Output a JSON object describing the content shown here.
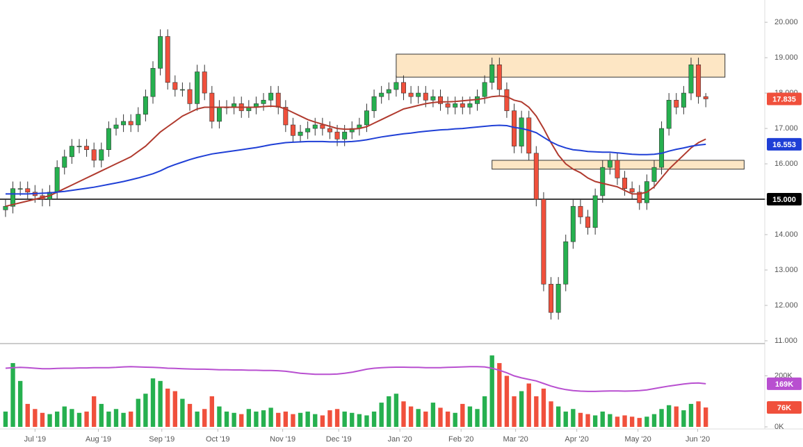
{
  "chart_data": {
    "type": "candlestick",
    "up_color": "#26b04f",
    "down_color": "#f0503c",
    "xlim": [
      -0.75,
      103
    ],
    "xticks": [
      {
        "value": 4.0,
        "label": "Jul '19"
      },
      {
        "value": 12.6,
        "label": "Aug '19"
      },
      {
        "value": 21.2,
        "label": "Sep '19"
      },
      {
        "value": 28.8,
        "label": "Oct '19"
      },
      {
        "value": 37.6,
        "label": "Nov '19"
      },
      {
        "value": 45.2,
        "label": "Dec '19"
      },
      {
        "value": 53.5,
        "label": "Jan '20"
      },
      {
        "value": 61.8,
        "label": "Feb '20"
      },
      {
        "value": 69.2,
        "label": "Mar '20"
      },
      {
        "value": 77.5,
        "label": "Apr '20"
      },
      {
        "value": 85.8,
        "label": "May '20"
      },
      {
        "value": 93.9,
        "label": "Jun '20"
      }
    ],
    "ylim": [
      10.96,
      20.63
    ],
    "yticks": [
      {
        "value": 11,
        "label": "11.000"
      },
      {
        "value": 12,
        "label": "12.000"
      },
      {
        "value": 13,
        "label": "13.000"
      },
      {
        "value": 14,
        "label": "14.000"
      },
      {
        "value": 15,
        "label": "15.000"
      },
      {
        "value": 16,
        "label": "16.000"
      },
      {
        "value": 17,
        "label": "17.000"
      },
      {
        "value": 18,
        "label": "18.000"
      },
      {
        "value": 19,
        "label": "19.000"
      },
      {
        "value": 20,
        "label": "20.000"
      }
    ],
    "open": [
      14.7,
      14.8,
      15.3,
      15.3,
      15.2,
      15.1,
      15.0,
      15.2,
      15.9,
      16.2,
      16.5,
      16.5,
      16.4,
      16.1,
      16.4,
      17.0,
      17.1,
      17.2,
      17.1,
      17.4,
      17.9,
      18.7,
      19.6,
      18.3,
      18.1,
      18.1,
      17.7,
      18.6,
      18.0,
      17.2,
      17.6,
      17.6,
      17.7,
      17.5,
      17.6,
      17.7,
      17.8,
      18.0,
      17.6,
      17.1,
      16.8,
      16.9,
      17.0,
      17.1,
      17.0,
      16.9,
      16.7,
      16.9,
      17.0,
      17.1,
      17.5,
      17.9,
      18.0,
      18.1,
      18.3,
      18.0,
      17.9,
      18.0,
      17.8,
      17.9,
      17.7,
      17.6,
      17.7,
      17.6,
      17.7,
      17.9,
      18.3,
      18.8,
      18.1,
      17.5,
      16.5,
      17.3,
      16.3,
      15.0,
      12.6,
      11.8,
      12.6,
      13.8,
      14.8,
      14.5,
      14.2,
      15.1,
      15.9,
      16.1,
      15.6,
      15.3,
      15.2,
      14.9,
      15.5,
      15.9,
      17.0,
      17.8,
      17.6,
      18.0,
      18.8,
      17.9
    ],
    "high": [
      15.0,
      15.5,
      15.5,
      15.5,
      15.4,
      15.3,
      15.4,
      16.1,
      16.4,
      16.7,
      16.7,
      16.7,
      16.6,
      16.6,
      17.2,
      17.3,
      17.4,
      17.4,
      17.6,
      18.1,
      18.9,
      19.8,
      19.8,
      18.5,
      18.3,
      18.3,
      18.8,
      18.8,
      18.2,
      17.8,
      17.8,
      17.9,
      17.9,
      17.8,
      17.9,
      18.0,
      18.2,
      18.2,
      17.8,
      17.3,
      17.1,
      17.2,
      17.3,
      17.3,
      17.2,
      17.1,
      17.1,
      17.2,
      17.3,
      17.7,
      18.1,
      18.2,
      18.3,
      18.5,
      18.5,
      18.2,
      18.2,
      18.2,
      18.1,
      18.1,
      17.9,
      17.9,
      17.9,
      17.9,
      18.1,
      18.5,
      19.0,
      19.0,
      18.3,
      17.7,
      17.5,
      17.5,
      16.5,
      15.2,
      12.8,
      12.8,
      14.0,
      15.0,
      15.0,
      14.7,
      15.3,
      16.1,
      16.3,
      16.3,
      15.8,
      15.5,
      15.4,
      15.7,
      16.1,
      17.2,
      18.0,
      18.0,
      18.2,
      19.0,
      19.0,
      18.0
    ],
    "low": [
      14.5,
      14.6,
      15.1,
      15.0,
      14.9,
      14.8,
      14.8,
      15.0,
      15.7,
      16.0,
      16.3,
      16.2,
      15.9,
      15.9,
      16.2,
      16.8,
      16.9,
      16.9,
      16.9,
      17.2,
      17.7,
      18.5,
      18.1,
      17.9,
      17.9,
      17.5,
      17.5,
      17.8,
      17.0,
      17.0,
      17.4,
      17.4,
      17.3,
      17.3,
      17.4,
      17.5,
      17.6,
      17.4,
      16.9,
      16.6,
      16.6,
      16.7,
      16.8,
      16.8,
      16.7,
      16.5,
      16.5,
      16.7,
      16.8,
      16.9,
      17.3,
      17.7,
      17.8,
      17.9,
      17.8,
      17.7,
      17.7,
      17.6,
      17.6,
      17.5,
      17.4,
      17.4,
      17.4,
      17.4,
      17.5,
      17.7,
      18.1,
      17.9,
      17.3,
      16.3,
      16.3,
      16.1,
      14.8,
      12.4,
      11.6,
      11.6,
      12.4,
      13.6,
      14.3,
      14.0,
      14.0,
      14.9,
      15.7,
      15.4,
      15.1,
      15.0,
      14.7,
      14.7,
      15.3,
      15.7,
      16.8,
      17.4,
      17.4,
      17.8,
      17.7,
      17.6
    ],
    "close": [
      14.8,
      15.3,
      15.3,
      15.2,
      15.1,
      15.0,
      15.2,
      15.9,
      16.2,
      16.5,
      16.5,
      16.4,
      16.1,
      16.4,
      17.0,
      17.1,
      17.2,
      17.1,
      17.4,
      17.9,
      18.7,
      19.6,
      18.3,
      18.1,
      18.1,
      17.7,
      18.6,
      18.0,
      17.2,
      17.6,
      17.6,
      17.7,
      17.5,
      17.6,
      17.7,
      17.8,
      18.0,
      17.6,
      17.1,
      16.8,
      16.9,
      17.0,
      17.1,
      17.0,
      16.9,
      16.7,
      16.9,
      17.0,
      17.1,
      17.5,
      17.9,
      18.0,
      18.1,
      18.3,
      18.0,
      17.9,
      18.0,
      17.8,
      17.9,
      17.7,
      17.6,
      17.7,
      17.6,
      17.7,
      17.9,
      18.3,
      18.8,
      18.1,
      17.5,
      16.5,
      17.3,
      16.3,
      15.0,
      12.6,
      11.8,
      12.6,
      13.8,
      14.8,
      14.5,
      14.2,
      15.1,
      15.9,
      16.1,
      15.6,
      15.3,
      15.2,
      14.9,
      15.5,
      15.9,
      17.0,
      17.8,
      17.6,
      18.0,
      18.8,
      17.9,
      17.835
    ],
    "moving_averages": [
      {
        "color": "#b03a2e",
        "values": [
          14.8,
          14.85,
          14.9,
          14.95,
          15.0,
          15.05,
          15.1,
          15.2,
          15.3,
          15.4,
          15.5,
          15.6,
          15.7,
          15.8,
          15.9,
          16.0,
          16.1,
          16.2,
          16.35,
          16.5,
          16.7,
          16.9,
          17.05,
          17.2,
          17.35,
          17.45,
          17.55,
          17.6,
          17.6,
          17.6,
          17.6,
          17.6,
          17.6,
          17.6,
          17.6,
          17.62,
          17.63,
          17.62,
          17.55,
          17.45,
          17.35,
          17.25,
          17.18,
          17.12,
          17.06,
          17.0,
          16.98,
          16.98,
          17.0,
          17.05,
          17.15,
          17.25,
          17.35,
          17.45,
          17.55,
          17.6,
          17.65,
          17.7,
          17.73,
          17.75,
          17.75,
          17.76,
          17.78,
          17.8,
          17.82,
          17.85,
          17.9,
          17.92,
          17.9,
          17.8,
          17.75,
          17.6,
          17.35,
          17.0,
          16.6,
          16.25,
          16.0,
          15.85,
          15.75,
          15.6,
          15.5,
          15.45,
          15.4,
          15.35,
          15.25,
          15.15,
          15.15,
          15.2,
          15.35,
          15.6,
          15.85,
          16.05,
          16.25,
          16.45,
          16.6,
          16.7
        ]
      },
      {
        "color": "#1f3fd6",
        "values": [
          15.15,
          15.15,
          15.15,
          15.15,
          15.16,
          15.17,
          15.18,
          15.2,
          15.22,
          15.25,
          15.28,
          15.31,
          15.34,
          15.38,
          15.42,
          15.46,
          15.5,
          15.55,
          15.6,
          15.66,
          15.72,
          15.8,
          15.9,
          15.98,
          16.05,
          16.12,
          16.18,
          16.23,
          16.28,
          16.31,
          16.34,
          16.37,
          16.4,
          16.43,
          16.46,
          16.5,
          16.54,
          16.57,
          16.6,
          16.61,
          16.62,
          16.63,
          16.63,
          16.63,
          16.62,
          16.62,
          16.62,
          16.63,
          16.65,
          16.68,
          16.72,
          16.76,
          16.79,
          16.82,
          16.85,
          16.87,
          16.9,
          16.92,
          16.94,
          16.96,
          16.97,
          16.99,
          17.0,
          17.02,
          17.04,
          17.06,
          17.08,
          17.09,
          17.08,
          17.03,
          17.0,
          16.95,
          16.88,
          16.75,
          16.62,
          16.52,
          16.45,
          16.4,
          16.38,
          16.35,
          16.34,
          16.33,
          16.33,
          16.31,
          16.29,
          16.27,
          16.26,
          16.26,
          16.27,
          16.3,
          16.36,
          16.41,
          16.45,
          16.5,
          16.53,
          16.553
        ]
      }
    ],
    "hline": {
      "value": 15,
      "label": "15.000",
      "color": "#000000"
    },
    "zones": [
      {
        "x": [
          53.0,
          97.6
        ],
        "y": [
          18.45,
          19.1
        ]
      },
      {
        "x": [
          66.0,
          100.2
        ],
        "y": [
          15.85,
          16.1
        ]
      }
    ],
    "zone_color": "#fde6c4",
    "volume": {
      "ylim": [
        0,
        321
      ],
      "yticks": [
        {
          "value": 0,
          "label": "0K"
        },
        {
          "value": 200,
          "label": "200K"
        }
      ],
      "values": [
        60,
        250,
        180,
        90,
        70,
        55,
        50,
        60,
        80,
        70,
        55,
        60,
        120,
        90,
        60,
        70,
        55,
        60,
        110,
        130,
        190,
        180,
        150,
        140,
        110,
        90,
        60,
        70,
        120,
        80,
        60,
        55,
        50,
        70,
        60,
        65,
        75,
        55,
        60,
        50,
        55,
        60,
        50,
        45,
        65,
        70,
        60,
        55,
        50,
        45,
        60,
        95,
        120,
        130,
        100,
        80,
        70,
        60,
        95,
        75,
        60,
        55,
        90,
        80,
        70,
        120,
        280,
        250,
        200,
        120,
        140,
        170,
        120,
        150,
        100,
        80,
        60,
        70,
        55,
        50,
        45,
        60,
        50,
        40,
        45,
        40,
        35,
        40,
        50,
        70,
        85,
        80,
        65,
        90,
        100,
        76
      ],
      "last_label": "76K",
      "avg": {
        "color": "#b84fd0",
        "values": [
          230,
          232,
          233,
          232,
          230,
          228,
          228,
          229,
          230,
          230,
          231,
          231,
          232,
          232,
          232,
          233,
          235,
          236,
          235,
          234,
          233,
          232,
          230,
          229,
          228,
          227,
          226,
          226,
          225,
          224,
          224,
          223,
          223,
          222,
          222,
          221,
          221,
          220,
          218,
          214,
          210,
          208,
          206,
          206,
          206,
          207,
          210,
          214,
          220,
          226,
          230,
          232,
          233,
          234,
          234,
          233,
          233,
          232,
          232,
          232,
          233,
          234,
          235,
          236,
          236,
          235,
          230,
          222,
          212,
          200,
          192,
          186,
          180,
          170,
          160,
          152,
          146,
          142,
          140,
          139,
          139,
          140,
          141,
          141,
          140,
          141,
          142,
          145,
          150,
          155,
          160,
          164,
          168,
          171,
          172,
          169
        ],
        "last_label": "169K"
      }
    }
  }
}
